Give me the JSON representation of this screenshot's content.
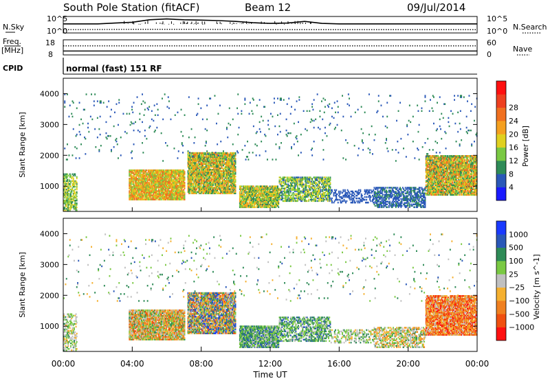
{
  "header": {
    "station": "South Pole Station (fitACF)",
    "beam": "Beam 12",
    "date": "09/Jul/2014"
  },
  "side_labels": {
    "nsky": "N.Sky",
    "nsearch": "N.Search",
    "freq_line1": "Freq.",
    "freq_line2": "[MHz]",
    "nave": "Nave",
    "cpid": "CPID"
  },
  "cpid_text": "normal (fast) 151 RF",
  "chart_data": [
    {
      "type": "line",
      "panel": "noise",
      "ylabel_left": "N.Sky",
      "ylabel_right": "N.Search",
      "left_ticks": [
        "10^5",
        "10^0"
      ],
      "right_ticks": [
        "10^5",
        "10^0"
      ],
      "series": [
        {
          "name": "N.Sky",
          "style": "solid",
          "x_hours": [
            0,
            2,
            3,
            4,
            5,
            6,
            7,
            8,
            9,
            10,
            11,
            12,
            13,
            14,
            15,
            16,
            18,
            20,
            22,
            24
          ],
          "y_frac": [
            0.55,
            0.55,
            0.6,
            0.65,
            0.8,
            0.85,
            0.8,
            0.78,
            0.75,
            0.7,
            0.62,
            0.58,
            0.6,
            0.7,
            0.58,
            0.55,
            0.55,
            0.55,
            0.55,
            0.55
          ]
        },
        {
          "name": "N.Search",
          "style": "dotted",
          "x_hours": [
            0,
            4,
            8,
            12,
            16,
            20,
            24
          ],
          "y_frac": [
            0.2,
            0.22,
            0.22,
            0.2,
            0.2,
            0.2,
            0.2
          ]
        }
      ]
    },
    {
      "type": "line",
      "panel": "frequency",
      "ylabel_left": "Freq. [MHz]",
      "ylabel_right": "Nave",
      "left_ticks": [
        18,
        8
      ],
      "right_ticks": [
        60,
        0
      ],
      "series": [
        {
          "name": "Freq.",
          "style": "solid",
          "x_hours": [
            0,
            24
          ],
          "y_value_mhz": [
            10.6,
            10.6
          ]
        },
        {
          "name": "Nave",
          "style": "dotted",
          "x_hours": [
            0,
            24
          ],
          "y_value_nave": [
            36,
            36
          ]
        }
      ]
    },
    {
      "type": "heatmap",
      "panel": "power",
      "xlabel": "",
      "ylabel": "Slant Range [km]",
      "xlim_hours": [
        0,
        24
      ],
      "ylim_km": [
        180,
        4500
      ],
      "y_ticks": [
        1000,
        2000,
        3000,
        4000
      ],
      "colorbar_label": "Power [dB]",
      "colorbar_ticks": [
        4,
        8,
        12,
        16,
        20,
        24,
        28
      ],
      "colorbar_colors": [
        "#1a1aff",
        "#2a58b8",
        "#2e8b57",
        "#7ac943",
        "#e0d020",
        "#f5a020",
        "#f07020",
        "#ee4020",
        "#ff1010"
      ],
      "regions": [
        {
          "t": [
            0.0,
            0.8
          ],
          "r": [
            200,
            1400
          ],
          "lo": 8,
          "hi": 20,
          "fill": 0.55
        },
        {
          "t": [
            3.8,
            7.0
          ],
          "r": [
            550,
            1500
          ],
          "lo": 12,
          "hi": 28,
          "fill": 0.9
        },
        {
          "t": [
            7.2,
            10.0
          ],
          "r": [
            750,
            2100
          ],
          "lo": 8,
          "hi": 26,
          "fill": 0.85
        },
        {
          "t": [
            10.2,
            12.5
          ],
          "r": [
            300,
            1000
          ],
          "lo": 8,
          "hi": 24,
          "fill": 0.85
        },
        {
          "t": [
            12.5,
            15.5
          ],
          "r": [
            500,
            1300
          ],
          "lo": 6,
          "hi": 20,
          "fill": 0.6
        },
        {
          "t": [
            15.5,
            18.0
          ],
          "r": [
            450,
            900
          ],
          "lo": 4,
          "hi": 8,
          "fill": 0.35
        },
        {
          "t": [
            18.0,
            21.0
          ],
          "r": [
            300,
            950
          ],
          "lo": 4,
          "hi": 10,
          "fill": 0.55
        },
        {
          "t": [
            21.0,
            24.0
          ],
          "r": [
            700,
            2000
          ],
          "lo": 8,
          "hi": 28,
          "fill": 0.85
        },
        {
          "t": [
            0.0,
            24.0
          ],
          "r": [
            1800,
            4000
          ],
          "lo": 4,
          "hi": 12,
          "fill": 0.02
        }
      ]
    },
    {
      "type": "heatmap",
      "panel": "velocity",
      "xlabel": "Time UT",
      "ylabel": "Slant Range [km]",
      "xlim_hours": [
        0,
        24
      ],
      "ylim_km": [
        180,
        4500
      ],
      "y_ticks": [
        1000,
        2000,
        3000,
        4000
      ],
      "x_ticks": [
        "00:00",
        "04:00",
        "08:00",
        "12:00",
        "16:00",
        "20:00",
        "00:00"
      ],
      "colorbar_label": "Velocity [m s^-1]",
      "colorbar_ticks": [
        -1000,
        -500,
        -100,
        -25,
        25,
        100,
        500,
        1000
      ],
      "colorbar_colors": [
        "#ff1010",
        "#f05010",
        "#f08020",
        "#f5b030",
        "#c0c0c0",
        "#7ac943",
        "#2e8b57",
        "#2a58b8",
        "#1a3aff"
      ],
      "regions": [
        {
          "t": [
            0.0,
            0.8
          ],
          "r": [
            200,
            1400
          ],
          "lo": 3,
          "hi": 6,
          "fill": 0.45
        },
        {
          "t": [
            3.8,
            7.0
          ],
          "r": [
            550,
            1500
          ],
          "lo": 1,
          "hi": 6,
          "fill": 0.9
        },
        {
          "t": [
            7.2,
            10.0
          ],
          "r": [
            750,
            2100
          ],
          "lo": 1,
          "hi": 8,
          "fill": 0.85
        },
        {
          "t": [
            10.2,
            12.5
          ],
          "r": [
            300,
            1000
          ],
          "lo": 4,
          "hi": 7,
          "fill": 0.85
        },
        {
          "t": [
            12.5,
            15.5
          ],
          "r": [
            500,
            1300
          ],
          "lo": 4,
          "hi": 7,
          "fill": 0.55
        },
        {
          "t": [
            15.5,
            18.0
          ],
          "r": [
            450,
            900
          ],
          "lo": 3,
          "hi": 6,
          "fill": 0.35
        },
        {
          "t": [
            18.0,
            21.0
          ],
          "r": [
            300,
            950
          ],
          "lo": 2,
          "hi": 6,
          "fill": 0.55
        },
        {
          "t": [
            21.0,
            24.0
          ],
          "r": [
            700,
            2000
          ],
          "lo": 0,
          "hi": 4,
          "fill": 0.85
        },
        {
          "t": [
            0.0,
            24.0
          ],
          "r": [
            1800,
            4000
          ],
          "lo": 3,
          "hi": 7,
          "fill": 0.02
        }
      ]
    }
  ]
}
